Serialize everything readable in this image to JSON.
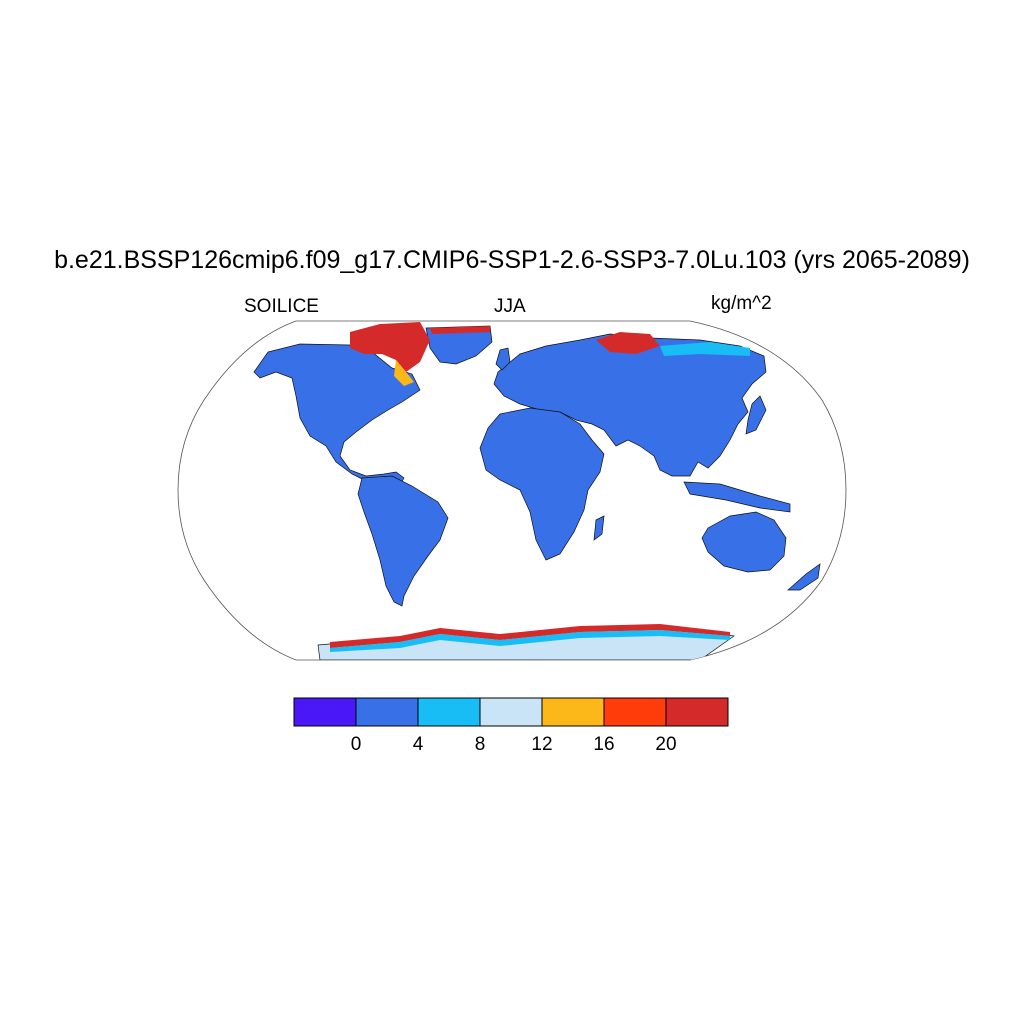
{
  "title": "b.e21.BSSP126cmip6.f09_g17.CMIP6-SSP1-2.6-SSP3-7.0Lu.103 (yrs 2065-2089)",
  "left_label": "SOILICE",
  "center_label": "JJA",
  "right_label": "kg/m^2",
  "map": {
    "projection": "Robinson",
    "ocean_color": "#ffffff",
    "land_color": "#3870e8",
    "high_ice_color": "#d42a2a"
  },
  "colorbar": {
    "colors": [
      "#4a18f6",
      "#3870e8",
      "#18bdf5",
      "#c8e4f6",
      "#fbb818",
      "#ff3c0a",
      "#d42a2a"
    ],
    "labels": [
      "0",
      "4",
      "8",
      "12",
      "16",
      "20"
    ]
  }
}
